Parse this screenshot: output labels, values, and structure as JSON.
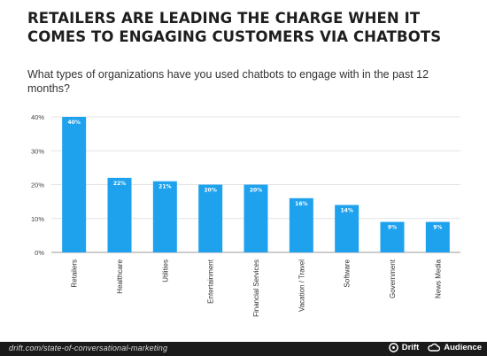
{
  "headline": "RETAILERS ARE LEADING THE CHARGE WHEN IT COMES TO ENGAGING CUSTOMERS VIA CHATBOTS",
  "question": "What types of organizations have you used chatbots to engage with in the past 12 months?",
  "footer": {
    "url": "drift.com/state-of-conversational-marketing",
    "logo1": "Drift",
    "logo2": "Audience"
  },
  "colors": {
    "bar": "#1ea2ee",
    "grid": "#e3e3e3",
    "axis": "#999999"
  },
  "chart_data": {
    "type": "bar",
    "categories": [
      "Retailers",
      "Healthcare",
      "Utilities",
      "Entertainment",
      "Financial Services",
      "Vacation / Travel",
      "Software",
      "Government",
      "News Media"
    ],
    "values": [
      40,
      22,
      21,
      20,
      20,
      16,
      14,
      9,
      9
    ],
    "data_labels": [
      "40%",
      "22%",
      "21%",
      "20%",
      "20%",
      "16%",
      "14%",
      "9%",
      "9%"
    ],
    "title": "",
    "xlabel": "",
    "ylabel": "",
    "ylim": [
      0,
      40
    ],
    "yticks": [
      0,
      10,
      20,
      30,
      40
    ],
    "ytick_labels": [
      "0%",
      "10%",
      "20%",
      "30%",
      "40%"
    ],
    "grid": true,
    "legend": "none"
  }
}
